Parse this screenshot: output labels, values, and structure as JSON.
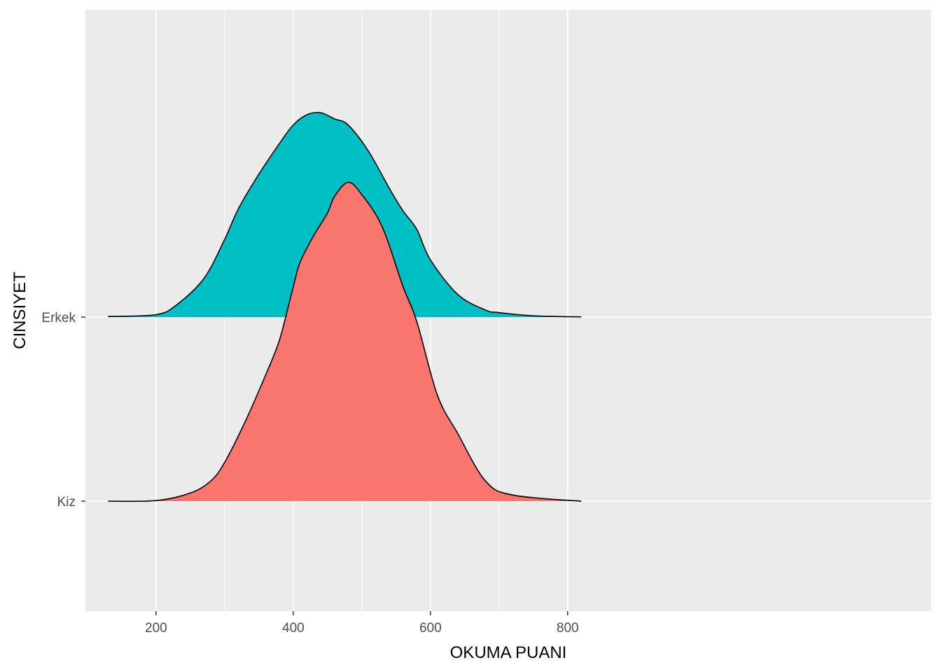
{
  "chart_data": {
    "type": "area",
    "subtype": "density-ridgeline",
    "xlabel": "OKUMA PUANI",
    "ylabel": "CINSIYET",
    "xlim": [
      97,
      1330
    ],
    "x_ticks": [
      200,
      400,
      600,
      800
    ],
    "x_tick_labels": [
      "200",
      "400",
      "600",
      "800"
    ],
    "categories": [
      "Kiz",
      "Erkek"
    ],
    "grid": true,
    "legend": "none",
    "colors": {
      "panel_background": "#EBEBEB",
      "grid_major": "#FFFFFF",
      "outline": "#000000",
      "axis_text": "#4D4D4D"
    },
    "series": [
      {
        "name": "Erkek",
        "color": "#00BFC4",
        "x": [
          130,
          200,
          230,
          270,
          300,
          320,
          350,
          380,
          400,
          420,
          440,
          460,
          480,
          510,
          540,
          560,
          580,
          600,
          640,
          680,
          700,
          750,
          820
        ],
        "density": [
          0.003,
          0.012,
          0.06,
          0.19,
          0.38,
          0.53,
          0.7,
          0.85,
          0.94,
          0.99,
          1.0,
          0.97,
          0.94,
          0.81,
          0.63,
          0.52,
          0.43,
          0.28,
          0.11,
          0.035,
          0.022,
          0.006,
          0.001
        ]
      },
      {
        "name": "Kiz",
        "color": "#F8766D",
        "x": [
          130,
          200,
          250,
          280,
          300,
          330,
          360,
          380,
          400,
          410,
          430,
          450,
          460,
          480,
          500,
          530,
          560,
          580,
          610,
          640,
          680,
          720,
          820
        ],
        "density": [
          0.0,
          0.003,
          0.04,
          0.1,
          0.19,
          0.39,
          0.62,
          0.79,
          1.05,
          1.17,
          1.3,
          1.41,
          1.49,
          1.56,
          1.5,
          1.34,
          1.05,
          0.88,
          0.52,
          0.33,
          0.1,
          0.03,
          0.0
        ]
      }
    ]
  }
}
